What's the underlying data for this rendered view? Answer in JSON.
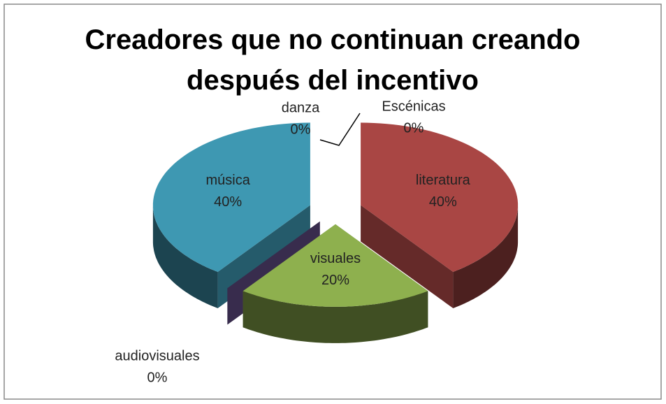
{
  "chart_data": {
    "type": "pie3d",
    "title": "Creadores que no continuan creando después del incentivo",
    "categories": [
      "Escénicas",
      "literatura",
      "visuales",
      "audiovisuales",
      "música",
      "danza"
    ],
    "values": [
      0,
      40,
      20,
      0,
      40,
      0
    ],
    "value_labels": [
      "0%",
      "40%",
      "20%",
      "0%",
      "40%",
      "0%"
    ],
    "colors": [
      "#4f81bd",
      "#a94644",
      "#8eb04e",
      "#5e4a80",
      "#3e98b2",
      "#f39b4f"
    ]
  }
}
